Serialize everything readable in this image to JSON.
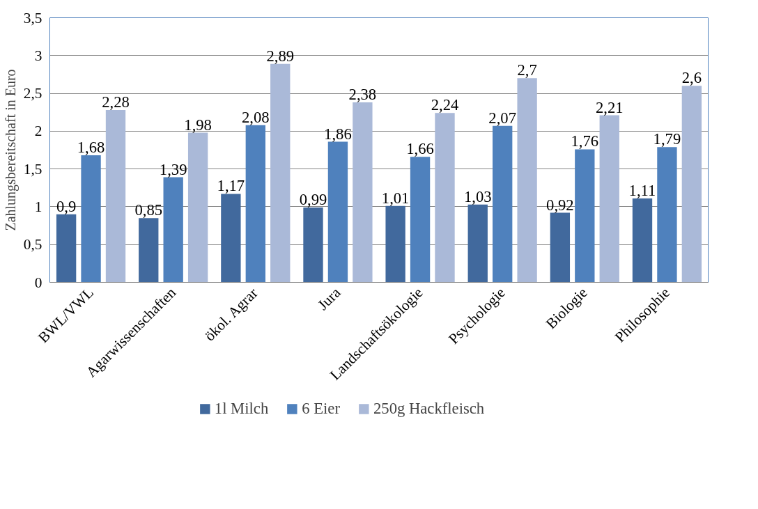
{
  "chart_data": {
    "type": "bar",
    "ylabel": "Zahlungsbereitschaft in Euro",
    "categories": [
      "BWL/VWL",
      "Agarwissenschaften",
      "ökol. Agrar",
      "Jura",
      "Landschaftsökologie",
      "Psychologie",
      "Biologie",
      "Philosophie"
    ],
    "series": [
      {
        "name": "1l Milch",
        "color": "#41699d",
        "values": [
          0.9,
          0.85,
          1.17,
          0.99,
          1.01,
          1.03,
          0.92,
          1.11
        ],
        "value_labels": [
          "0,9",
          "0,85",
          "1,17",
          "0,99",
          "1,01",
          "1,03",
          "0,92",
          "1,11"
        ]
      },
      {
        "name": "6 Eier",
        "color": "#4f81bd",
        "values": [
          1.68,
          1.39,
          2.08,
          1.86,
          1.66,
          2.07,
          1.76,
          1.79
        ],
        "value_labels": [
          "1,68",
          "1,39",
          "2,08",
          "1,86",
          "1,66",
          "2,07",
          "1,76",
          "1,79"
        ]
      },
      {
        "name": "250g Hackfleisch",
        "color": "#aab9d8",
        "values": [
          2.28,
          1.98,
          2.89,
          2.38,
          2.24,
          2.7,
          2.21,
          2.6
        ],
        "value_labels": [
          "2,28",
          "1,98",
          "2,89",
          "2,38",
          "2,24",
          "2,7",
          "2,21",
          "2,6"
        ]
      }
    ],
    "ylim": [
      0,
      3.5
    ],
    "yticks": [
      0,
      {
        "value": 0.5,
        "label": "0,5"
      },
      1,
      {
        "value": 1.5,
        "label": "1,5"
      },
      2,
      {
        "value": 2.5,
        "label": "2,5"
      },
      3,
      {
        "value": 3.5,
        "label": "3,5"
      }
    ],
    "grid": "y",
    "legend": "bottom"
  }
}
